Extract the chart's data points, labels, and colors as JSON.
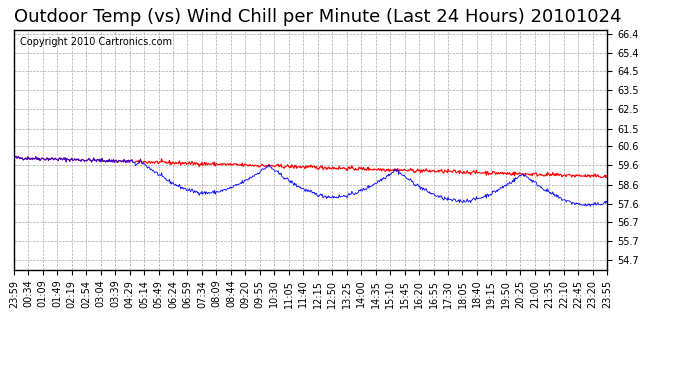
{
  "title": "Outdoor Temp (vs) Wind Chill per Minute (Last 24 Hours) 20101024",
  "copyright": "Copyright 2010 Cartronics.com",
  "outdoor_color": "#ff0000",
  "windchill_color": "#0000ff",
  "background_color": "#ffffff",
  "grid_color": "#aaaaaa",
  "ylim": [
    54.7,
    66.4
  ],
  "yticks": [
    54.7,
    55.7,
    56.7,
    57.6,
    58.6,
    59.6,
    60.6,
    61.5,
    62.5,
    63.5,
    64.5,
    65.4,
    66.4
  ],
  "xtick_labels": [
    "23:59",
    "00:34",
    "01:09",
    "01:49",
    "02:19",
    "02:54",
    "03:04",
    "03:39",
    "04:29",
    "05:14",
    "05:49",
    "06:24",
    "06:59",
    "07:34",
    "08:09",
    "08:44",
    "09:20",
    "09:55",
    "10:30",
    "11:05",
    "11:40",
    "12:15",
    "12:50",
    "13:25",
    "14:00",
    "14:35",
    "15:10",
    "15:45",
    "16:20",
    "16:55",
    "17:30",
    "18:05",
    "18:40",
    "19:15",
    "19:50",
    "20:25",
    "21:00",
    "21:35",
    "22:10",
    "22:45",
    "23:20",
    "23:55"
  ],
  "title_fontsize": 13,
  "tick_fontsize": 7,
  "copyright_fontsize": 7
}
